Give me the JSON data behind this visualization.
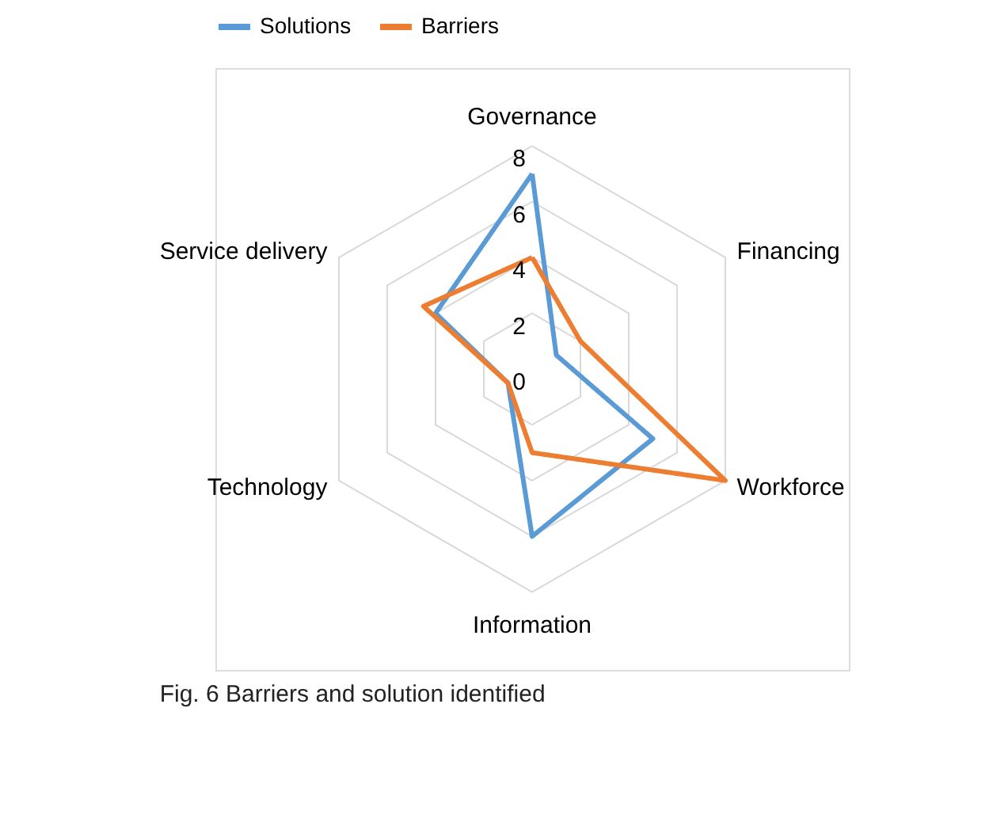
{
  "chart_data": {
    "type": "radar",
    "categories": [
      "Governance",
      "Financing",
      "Workforce",
      "Information",
      "Technology",
      "Service delivery"
    ],
    "series": [
      {
        "name": "Solutions",
        "color": "#5b9bd5",
        "values": [
          7,
          1,
          5,
          6,
          1,
          4
        ]
      },
      {
        "name": "Barriers",
        "color": "#ed7d31",
        "values": [
          4,
          2,
          8,
          3,
          1,
          4.5
        ]
      }
    ],
    "ylim": [
      0,
      8
    ],
    "yticks": [
      0,
      2,
      4,
      6,
      8
    ],
    "grid": true,
    "legend": "top",
    "marker": "none",
    "line_style": "solid",
    "annotations": [
      "Fig. 6  Barriers and solution identified"
    ]
  }
}
